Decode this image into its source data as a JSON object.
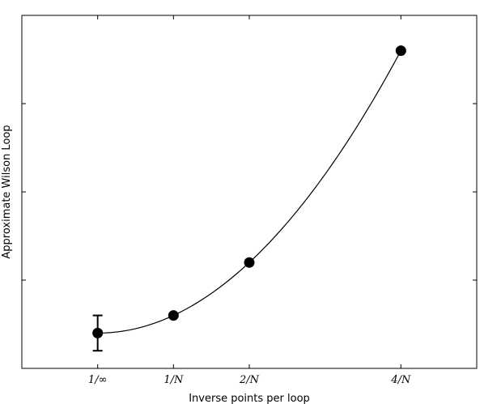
{
  "chart_data": {
    "type": "scatter",
    "title": "",
    "xlabel": "Inverse points per loop",
    "ylabel": "Approximate Wilson Loop",
    "x_ticks": [
      {
        "value": 0,
        "label": "1/∞"
      },
      {
        "value": 1,
        "label": "1/N"
      },
      {
        "value": 2,
        "label": "2/N"
      },
      {
        "value": 4,
        "label": "4/N"
      }
    ],
    "xlim": [
      -1,
      5
    ],
    "ylim": [
      0,
      1
    ],
    "y_tick_values": [
      0.25,
      0.5,
      0.75
    ],
    "y_tick_labels_shown": false,
    "grid": false,
    "legend": "none",
    "marker_color": "#000000",
    "line_color": "#000000",
    "points": [
      {
        "x": 0,
        "y": 0.1,
        "yerr": 0.05
      },
      {
        "x": 1,
        "y": 0.15
      },
      {
        "x": 2,
        "y": 0.3
      },
      {
        "x": 4,
        "y": 0.9
      }
    ],
    "fit_curve": {
      "form": "quadratic",
      "coefficients": [
        0.1,
        0,
        0.05
      ]
    }
  }
}
